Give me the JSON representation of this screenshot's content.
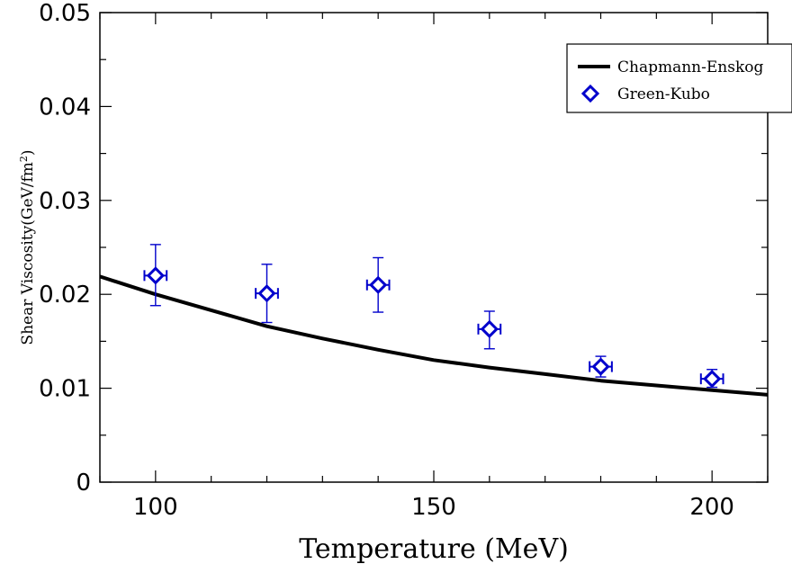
{
  "chart_data": {
    "type": "scatter",
    "xlabel": "Temperature (MeV)",
    "ylabel": "Shear Viscosity(GeV/fm",
    "ylabel_sup": "2",
    "ylabel_suffix": ")",
    "xlim": [
      90,
      210
    ],
    "ylim": [
      0,
      0.05
    ],
    "x_ticks": [
      100,
      150,
      200
    ],
    "x_tick_labels": [
      "100",
      "150",
      "200"
    ],
    "y_ticks": [
      0,
      0.01,
      0.02,
      0.03,
      0.04,
      0.05
    ],
    "y_tick_labels": [
      "0",
      "0.01",
      "0.02",
      "0.03",
      "0.04",
      "0.05"
    ],
    "grid": false,
    "legend_position": "top-right",
    "series": [
      {
        "name": "Chapmann-Enskog",
        "kind": "line",
        "color": "#000000",
        "x": [
          90,
          100,
          110,
          120,
          130,
          140,
          150,
          160,
          170,
          180,
          190,
          200,
          210
        ],
        "y": [
          0.0219,
          0.02,
          0.0183,
          0.0166,
          0.0153,
          0.0141,
          0.013,
          0.0122,
          0.0115,
          0.0108,
          0.0103,
          0.0098,
          0.0093
        ]
      },
      {
        "name": "Green-Kubo",
        "kind": "scatter",
        "marker": "diamond",
        "color": "#0000cc",
        "points": [
          {
            "x": 100,
            "y": 0.022,
            "y_low": 0.0188,
            "y_high": 0.0253,
            "x_err": 2
          },
          {
            "x": 120,
            "y": 0.0201,
            "y_low": 0.017,
            "y_high": 0.0232,
            "x_err": 2
          },
          {
            "x": 140,
            "y": 0.021,
            "y_low": 0.0181,
            "y_high": 0.0239,
            "x_err": 2
          },
          {
            "x": 160,
            "y": 0.0163,
            "y_low": 0.0142,
            "y_high": 0.0182,
            "x_err": 2
          },
          {
            "x": 180,
            "y": 0.0123,
            "y_low": 0.0112,
            "y_high": 0.0134,
            "x_err": 2
          },
          {
            "x": 200,
            "y": 0.011,
            "y_low": 0.0101,
            "y_high": 0.012,
            "x_err": 2
          }
        ]
      }
    ]
  }
}
